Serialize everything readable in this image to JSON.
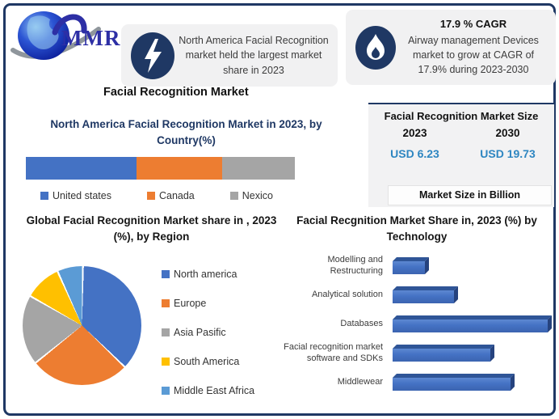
{
  "logo": {
    "text": "MMR"
  },
  "heading": "Facial Recognition Market",
  "callout_left": {
    "text": "North America Facial Recognition market held the largest market share in 2023"
  },
  "callout_right": {
    "headline": "17.9 % CAGR",
    "text": "Airway management Devices market to grow at CAGR of 17.9% during 2023-2030"
  },
  "market_size_panel": {
    "title": "Facial Recognition Market Size",
    "year_left": "2023",
    "year_right": "2030",
    "value_left": "USD 6.23",
    "value_right": "USD 19.73",
    "footnote": "Market Size in Billion",
    "value_color": "#2e86c1"
  },
  "colors": {
    "accent_navy": "#1f3864",
    "box_gray": "#f1f1f2",
    "bar_blue": "#4472c4"
  },
  "chart_data": [
    {
      "type": "bar",
      "variant": "stacked-horizontal",
      "title": "North America Facial Recognition Market in 2023, by Country(%)",
      "categories": [
        "United states",
        "Canada",
        "Nexico"
      ],
      "values": [
        41,
        32,
        27
      ],
      "colors": [
        "#4472C4",
        "#ED7D31",
        "#A5A5A5"
      ],
      "legend_position": "bottom",
      "axes": "none"
    },
    {
      "type": "pie",
      "title": "Global Facial Recognition Market share in , 2023 (%), by Region",
      "categories": [
        "North america",
        "Europe",
        "Asia Pasific",
        "South America",
        "Middle East Africa"
      ],
      "values": [
        37,
        27,
        19,
        10,
        7
      ],
      "colors": [
        "#4472C4",
        "#ED7D31",
        "#A5A5A5",
        "#FFC000",
        "#5B9BD5"
      ],
      "legend_position": "right",
      "start_angle_deg": 0,
      "direction": "clockwise"
    },
    {
      "type": "bar",
      "variant": "horizontal-3d",
      "title": "Facial Recgnition Market Share in, 2023 (%) by Technology",
      "categories": [
        "Modelling and Restructuring",
        "Analytical solution",
        "Databases",
        "Facial recognition market software and SDKs",
        "Middlewear"
      ],
      "values": [
        8,
        15,
        38,
        24,
        29
      ],
      "xlim": [
        0,
        40
      ],
      "color": "#4472C4",
      "axes": "none",
      "data_labels": false
    }
  ]
}
